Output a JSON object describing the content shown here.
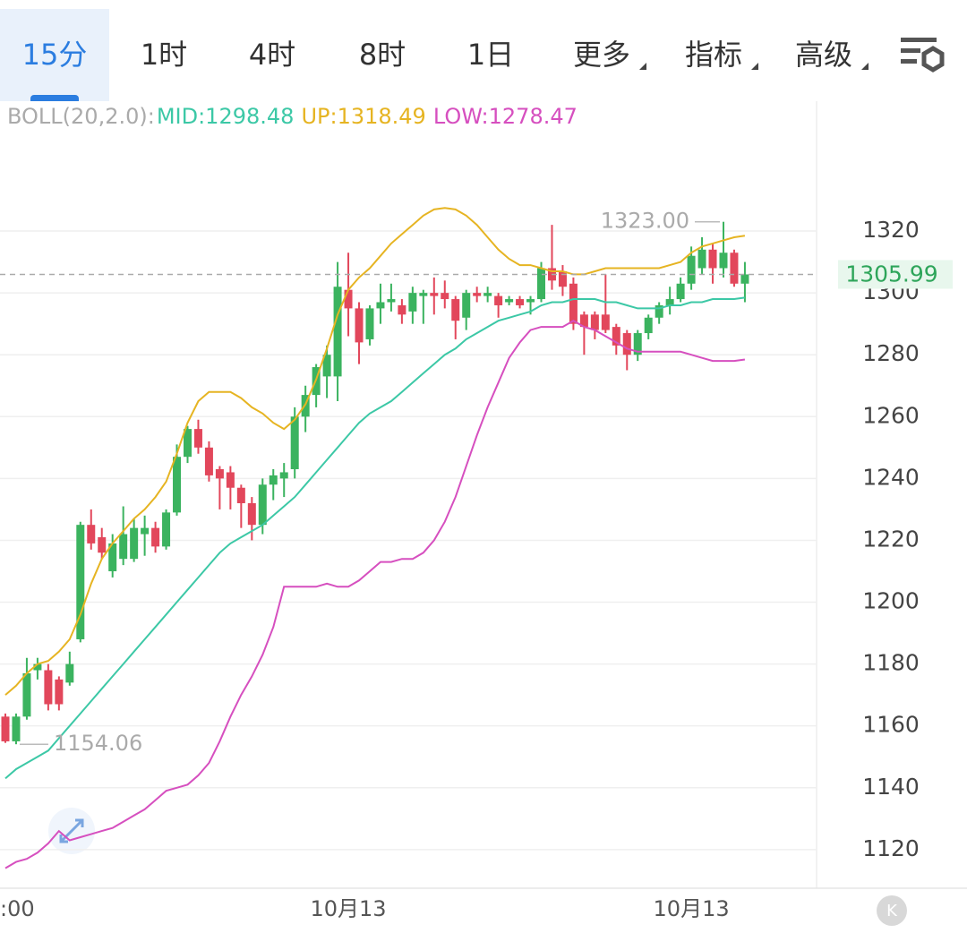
{
  "tabs": [
    "15分",
    "1时",
    "4时",
    "8时",
    "1日",
    "更多",
    "指标",
    "高级"
  ],
  "chart_data": {
    "type": "candlestick",
    "indicator": "BOLL(20,2.0):",
    "categories": [
      ":00",
      null,
      null,
      null,
      null,
      null,
      null,
      null,
      null,
      null,
      null,
      null,
      null,
      null,
      null,
      null,
      null,
      null,
      null,
      null,
      null,
      null,
      null,
      null,
      null,
      null,
      null,
      null,
      null,
      null,
      null,
      null,
      "10月13",
      null,
      null,
      null,
      null,
      null,
      null,
      null,
      null,
      null,
      null,
      null,
      null,
      null,
      null,
      null,
      null,
      null,
      null,
      null,
      null,
      null,
      null,
      null,
      null,
      null,
      null,
      null,
      null,
      null,
      null,
      null,
      "10月13",
      null,
      null,
      null,
      null,
      null
    ],
    "open": [
      1163,
      1155,
      1163,
      1178,
      1178,
      1175,
      1174,
      1188,
      1225,
      1221,
      1210,
      1214,
      1214,
      1222,
      1224,
      1218,
      1229,
      1247,
      1256,
      1250,
      1243,
      1242,
      1237,
      1232,
      1225,
      1238,
      1240,
      1243,
      1260,
      1267,
      1273,
      1273,
      1301,
      1295,
      1285,
      1295,
      1297,
      1296,
      1294,
      1299,
      1300,
      1300,
      1298,
      1292,
      1300,
      1299,
      1299,
      1297,
      1298,
      1297,
      1298,
      1308,
      1307,
      1303,
      1293,
      1293,
      1293,
      1289,
      1287,
      1280,
      1287,
      1292,
      1296,
      1298,
      1303,
      1308,
      1314,
      1308,
      1313,
      1303
    ],
    "high": [
      1164,
      1164,
      1182,
      1182,
      1180,
      1176,
      1184,
      1226,
      1230,
      1224,
      1222,
      1231,
      1227,
      1228,
      1226,
      1230,
      1251,
      1257,
      1259,
      1252,
      1244,
      1244,
      1238,
      1234,
      1240,
      1243,
      1245,
      1263,
      1270,
      1277,
      1283,
      1310,
      1313,
      1297,
      1296,
      1303,
      1303,
      1298,
      1302,
      1301,
      1305,
      1304,
      1299,
      1301,
      1302,
      1302,
      1300,
      1299,
      1299,
      1299,
      1310,
      1322,
      1309,
      1305,
      1294,
      1294,
      1306,
      1290,
      1288,
      1288,
      1293,
      1297,
      1302,
      1305,
      1315,
      1318,
      1316,
      1323,
      1314,
      1310
    ],
    "low": [
      1154.5,
      1154.06,
      1162,
      1175,
      1165,
      1165,
      1173,
      1187,
      1217,
      1214,
      1208,
      1212,
      1213,
      1215,
      1216,
      1217,
      1228,
      1245,
      1248,
      1239,
      1230,
      1230,
      1224,
      1220,
      1222,
      1233,
      1234,
      1240,
      1255,
      1263,
      1266,
      1265,
      1286,
      1277,
      1283,
      1290,
      1294,
      1290,
      1290,
      1290,
      1293,
      1295,
      1285,
      1288,
      1297,
      1297,
      1292,
      1296,
      1295,
      1293,
      1297,
      1301,
      1299,
      1288,
      1280,
      1285,
      1287,
      1280,
      1275,
      1278,
      1285,
      1290,
      1293,
      1297,
      1301,
      1306,
      1303,
      1305,
      1302,
      1297
    ],
    "close": [
      1155,
      1163,
      1177,
      1180,
      1167,
      1167,
      1180,
      1225,
      1219,
      1216,
      1219,
      1222,
      1224,
      1224,
      1218,
      1229,
      1247,
      1256,
      1250,
      1241,
      1240,
      1237,
      1232,
      1225,
      1238,
      1241,
      1242,
      1260,
      1267,
      1276,
      1280,
      1302,
      1295,
      1284,
      1295,
      1297,
      1298,
      1293,
      1300,
      1300,
      1299,
      1298,
      1291,
      1300,
      1299,
      1300,
      1296,
      1298,
      1296,
      1298,
      1308,
      1304,
      1302,
      1290,
      1289,
      1288,
      1288,
      1283,
      1280,
      1287,
      1292,
      1296,
      1298,
      1303,
      1312,
      1314,
      1308,
      1313,
      1303,
      1305.99
    ],
    "up_color": "#3bb35f",
    "down_color": "#e2475b",
    "series": [
      {
        "name": "MID:1298.48",
        "color": "#3cc8a6",
        "values": [
          1143,
          1146,
          1148,
          1150,
          1152,
          1156,
          1160,
          1164,
          1168,
          1172,
          1176,
          1180,
          1184,
          1188,
          1192,
          1196,
          1200,
          1204,
          1208,
          1212,
          1216,
          1219,
          1221,
          1223,
          1225,
          1228,
          1231,
          1234,
          1238,
          1242,
          1246,
          1250,
          1254,
          1258,
          1261,
          1263,
          1265,
          1268,
          1271,
          1274,
          1277,
          1280,
          1282,
          1285,
          1287,
          1289,
          1291,
          1292,
          1293,
          1294,
          1296,
          1297,
          1297,
          1298,
          1298,
          1298,
          1297,
          1297,
          1296,
          1295,
          1295,
          1295,
          1296,
          1296,
          1297,
          1297,
          1298,
          1298,
          1298,
          1298.48
        ]
      },
      {
        "name": "UP:1318.49",
        "color": "#e6b422",
        "values": [
          1170,
          1173,
          1177,
          1180,
          1181,
          1184,
          1188,
          1196,
          1206,
          1214,
          1219,
          1223,
          1227,
          1230,
          1234,
          1239,
          1248,
          1258,
          1265,
          1268,
          1268,
          1268,
          1266,
          1263,
          1261,
          1258,
          1256,
          1259,
          1264,
          1272,
          1282,
          1293,
          1301,
          1305,
          1308,
          1312,
          1316,
          1319,
          1322,
          1325,
          1327,
          1327.5,
          1327,
          1325,
          1322,
          1318,
          1314,
          1311,
          1309,
          1309,
          1308,
          1307,
          1307,
          1306,
          1306,
          1307,
          1308,
          1308,
          1308,
          1308,
          1308,
          1308,
          1309,
          1310,
          1313,
          1315,
          1316,
          1317,
          1318,
          1318.49
        ]
      },
      {
        "name": "LOW:1278.47",
        "color": "#d64fbf",
        "values": [
          1114,
          1116,
          1117,
          1119,
          1122,
          1126,
          1123,
          1124,
          1125,
          1126,
          1127,
          1129,
          1131,
          1133,
          1136,
          1139,
          1140,
          1141,
          1144,
          1148,
          1155,
          1163,
          1170,
          1176,
          1183,
          1192,
          1205,
          1205,
          1205,
          1205,
          1206,
          1205,
          1205,
          1207,
          1210,
          1213,
          1213,
          1214,
          1214,
          1216,
          1220,
          1226,
          1234,
          1244,
          1254,
          1263,
          1271,
          1279,
          1284,
          1288,
          1289,
          1289,
          1289,
          1291,
          1289,
          1288,
          1286,
          1284,
          1282,
          1281,
          1281,
          1281,
          1281,
          1281,
          1280,
          1279,
          1278,
          1278,
          1278,
          1278.47
        ]
      }
    ],
    "ylim": [
      1107.5,
      1362
    ],
    "yticks": [
      1120,
      1140,
      1160,
      1180,
      1200,
      1220,
      1240,
      1260,
      1280,
      1300,
      1320
    ],
    "grid": true,
    "last_price": 1305.99,
    "high_marker": {
      "value": 1323,
      "label": "1323.00"
    },
    "low_marker": {
      "value": 1154.06,
      "label": "1154.06"
    }
  }
}
